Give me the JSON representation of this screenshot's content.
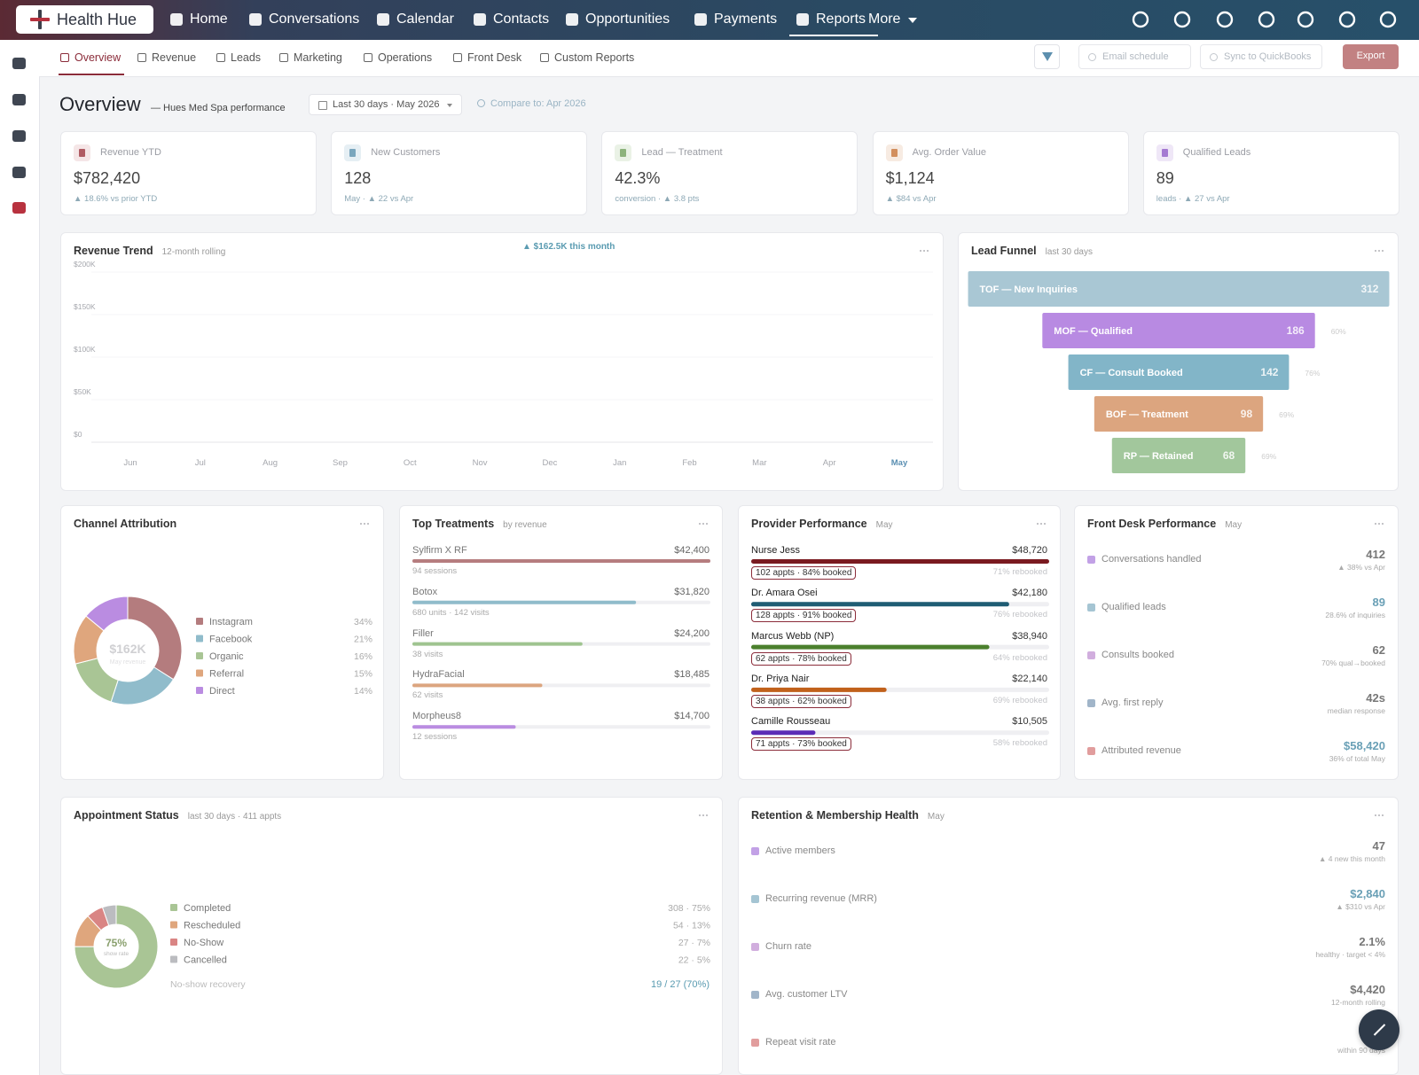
{
  "nav": {
    "brand": "Health Hue",
    "items": [
      "Home",
      "Conversations",
      "Calendar",
      "Contacts",
      "Opportunities",
      "Payments",
      "Reports",
      "More"
    ],
    "active": 6
  },
  "subnav": {
    "items": [
      "Overview",
      "Revenue",
      "Leads",
      "Marketing",
      "Operations",
      "Front Desk",
      "Custom Reports"
    ],
    "active": 0,
    "actions": [
      "Email schedule",
      "Sync to QuickBooks",
      "Export"
    ]
  },
  "header": {
    "title": "Overview",
    "subtitle": "— Hues Med Spa performance",
    "date_range": "Last 30 days · May 2026",
    "compare": "Compare to: Apr 2026"
  },
  "kpis": [
    {
      "label": "Revenue YTD",
      "value": 782420,
      "value_label": "$782,420",
      "note": "▲ 18.6% vs prior YTD"
    },
    {
      "label": "New Customers",
      "value": 128,
      "note": "May · ▲ 22 vs Apr"
    },
    {
      "label": "Lead — Treatment",
      "value": 42.3,
      "value_label": "42.3%",
      "note": "conversion · ▲ 3.8 pts"
    },
    {
      "label": "Avg. Order Value",
      "value": 1124,
      "value_label": "$1,124",
      "note": "▲ $84 vs Apr"
    },
    {
      "label": "Qualified Leads",
      "value": 89,
      "note": "leads · ▲ 27 vs Apr"
    }
  ],
  "revenue_trend": {
    "title": "Revenue Trend",
    "subtitle": "12-month rolling",
    "badge": "▲ $162.5K this month",
    "categories": [
      "Jun",
      "Jul",
      "Aug",
      "Sep",
      "Oct",
      "Nov",
      "Dec",
      "Jan",
      "Feb",
      "Mar",
      "Apr",
      "May"
    ],
    "ylim": [
      0,
      200000
    ],
    "yticks": [
      {
        "value": 0,
        "label": "$0"
      },
      {
        "value": 50000,
        "label": "$50K"
      },
      {
        "value": 100000,
        "label": "$100K"
      },
      {
        "value": 150000,
        "label": "$150K"
      },
      {
        "value": 200000,
        "label": "$200K"
      }
    ],
    "grid": true
  },
  "lead_funnel": {
    "title": "Lead Funnel",
    "subtitle": "last 30 days",
    "stages": [
      {
        "label": "TOF — New Inquiries",
        "value": 312,
        "color": "#a9c7d4"
      },
      {
        "label": "MOF — Qualified",
        "value": 186,
        "rate": "60%",
        "color": "#b88ae2"
      },
      {
        "label": "CF — Consult Booked",
        "value": 142,
        "rate": "76%",
        "color": "#82b5c8"
      },
      {
        "label": "BOF — Treatment",
        "value": 98,
        "rate": "69%",
        "color": "#dca57f"
      },
      {
        "label": "RP — Retained",
        "value": 68,
        "rate": "69%",
        "color": "#a2c79c"
      }
    ]
  },
  "channel_attribution": {
    "title": "Channel Attribution",
    "center_value": "$162K",
    "center_label": "May revenue",
    "items": [
      {
        "name": "Instagram",
        "value": 34,
        "value_label": "34%",
        "color": "#b47c7e"
      },
      {
        "name": "Facebook",
        "value": 21,
        "value_label": "21%",
        "color": "#90bccb"
      },
      {
        "name": "Organic",
        "value": 16,
        "value_label": "16%",
        "color": "#a9c595"
      },
      {
        "name": "Referral",
        "value": 15,
        "value_label": "15%",
        "color": "#dfa67d"
      },
      {
        "name": "Direct",
        "value": 14,
        "value_label": "14%",
        "color": "#ba8ce1"
      }
    ]
  },
  "top_treatments": {
    "title": "Top Treatments",
    "subtitle": "by revenue",
    "items": [
      {
        "name": "Sylfirm X RF",
        "value": 42400,
        "value_label": "$42,400",
        "detail": "94 sessions",
        "color": "#b67d7f"
      },
      {
        "name": "Botox",
        "value": 31820,
        "value_label": "$31,820",
        "detail": "680 units · 142 visits",
        "color": "#90bccb"
      },
      {
        "name": "Filler",
        "value": 24200,
        "value_label": "$24,200",
        "detail": "38 visits",
        "color": "#9fc490"
      },
      {
        "name": "HydraFacial",
        "value": 18485,
        "value_label": "$18,485",
        "detail": "62 visits",
        "color": "#dca57f"
      },
      {
        "name": "Morpheus8",
        "value": 14700,
        "value_label": "$14,700",
        "detail": "12 sessions",
        "color": "#ba8ce1"
      }
    ]
  },
  "provider_performance": {
    "title": "Provider Performance",
    "subtitle": "May",
    "items": [
      {
        "name": "Nurse Jess",
        "value": 48720,
        "value_label": "$48,720",
        "badge": "102 appts · 84% booked",
        "rebooked": "71% rebooked",
        "color": "#7a1a20"
      },
      {
        "name": "Dr. Amara Osei",
        "value": 42180,
        "value_label": "$42,180",
        "badge": "128 appts · 91% booked",
        "rebooked": "76% rebooked",
        "color": "#1f5d74"
      },
      {
        "name": "Marcus Webb (NP)",
        "value": 38940,
        "value_label": "$38,940",
        "badge": "62 appts · 78% booked",
        "rebooked": "64% rebooked",
        "color": "#4b802d"
      },
      {
        "name": "Dr. Priya Nair",
        "value": 22140,
        "value_label": "$22,140",
        "badge": "38 appts · 62% booked",
        "rebooked": "69% rebooked",
        "color": "#c1611b"
      },
      {
        "name": "Camille Rousseau",
        "value": 10505,
        "value_label": "$10,505",
        "badge": "71 appts · 73% booked",
        "rebooked": "58% rebooked",
        "color": "#5b2cb6"
      }
    ]
  },
  "front_desk_performance": {
    "title": "Front Desk Performance",
    "subtitle": "May",
    "rows": [
      {
        "label": "Conversations handled",
        "value": 412,
        "note": "▲ 38% vs Apr",
        "color": "#777"
      },
      {
        "label": "Qualified leads",
        "value": 89,
        "note": "28.6% of inquiries",
        "color": "#6aa0b6"
      },
      {
        "label": "Consults booked",
        "value": 62,
        "note": "70% qual→booked",
        "color": "#777"
      },
      {
        "label": "Avg. first reply",
        "value": 42,
        "value_label": "42s",
        "note": "median response",
        "color": "#777"
      },
      {
        "label": "Attributed revenue",
        "value": 58420,
        "value_label": "$58,420",
        "note": "36% of total May",
        "color": "#6aa0b6"
      }
    ]
  },
  "appointment_status": {
    "title": "Appointment Status",
    "subtitle": "last 30 days · 411 appts",
    "center_value": "75%",
    "center_label": "show rate",
    "items": [
      {
        "name": "Completed",
        "value": 308,
        "value_label": "308 · 75%",
        "color": "#a9c595"
      },
      {
        "name": "Rescheduled",
        "value": 54,
        "value_label": "54 · 13%",
        "color": "#dfa67d"
      },
      {
        "name": "No-Show",
        "value": 27,
        "value_label": "27 · 7%",
        "color": "#d98584"
      },
      {
        "name": "Cancelled",
        "value": 22,
        "value_label": "22 · 5%",
        "color": "#bbbcc0"
      }
    ],
    "footer_label": "No-show recovery",
    "footer_value": "19 / 27 (70%)"
  },
  "retention": {
    "title": "Retention & Membership Health",
    "subtitle": "May",
    "rows": [
      {
        "label": "Active members",
        "value": 47,
        "note": "▲ 4 new this month",
        "color": "#777"
      },
      {
        "label": "Recurring revenue (MRR)",
        "value": 2840,
        "value_label": "$2,840",
        "note": "▲ $310 vs Apr",
        "color": "#6aa0b6"
      },
      {
        "label": "Churn rate",
        "value": 2.1,
        "value_label": "2.1%",
        "note": "healthy · target < 4%",
        "color": "#777"
      },
      {
        "label": "Avg. customer LTV",
        "value": 4420,
        "value_label": "$4,420",
        "note": "12-month rolling",
        "color": "#777"
      },
      {
        "label": "Repeat visit rate",
        "note": "within 90 days"
      }
    ]
  }
}
